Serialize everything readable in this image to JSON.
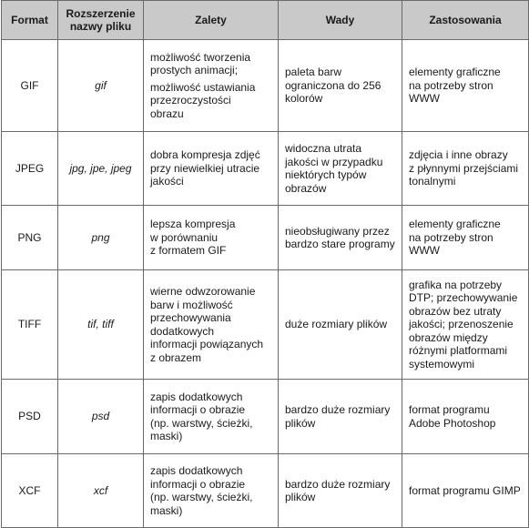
{
  "table": {
    "headers": [
      [
        "Format"
      ],
      [
        "Rozszerzenie",
        "nazwy pliku"
      ],
      [
        "Zalety"
      ],
      [
        "Wady"
      ],
      [
        "Zastosowania"
      ]
    ],
    "rows": [
      {
        "format": "GIF",
        "ext": "gif",
        "zalety": [
          [
            "możliwość tworzenia",
            "prostych animacji;"
          ],
          [
            "możliwość ustawiania",
            "przezroczystości",
            "obrazu"
          ]
        ],
        "wady": [
          "paleta barw",
          "ograniczona do 256",
          "kolorów"
        ],
        "zastosowania": [
          "elementy graficzne",
          "na potrzeby stron",
          "WWW"
        ]
      },
      {
        "format": "JPEG",
        "ext": "jpg, jpe, jpeg",
        "zalety": [
          [
            "dobra kompresja zdjęć",
            "przy niewielkiej utracie",
            "jakości"
          ]
        ],
        "wady": [
          "widoczna utrata",
          "jakości w przypadku",
          "niektórych typów",
          "obrazów"
        ],
        "zastosowania": [
          "zdjęcia i inne obrazy",
          "z płynnymi przejściami",
          "tonalnymi"
        ]
      },
      {
        "format": "PNG",
        "ext": "png",
        "zalety": [
          [
            "lepsza kompresja",
            "w porównaniu",
            "z formatem GIF"
          ]
        ],
        "wady": [
          "nieobsługiwany przez",
          "bardzo stare programy"
        ],
        "zastosowania": [
          "elementy graficzne",
          "na potrzeby stron",
          "WWW"
        ]
      },
      {
        "format": "TIFF",
        "ext": "tif, tiff",
        "zalety": [
          [
            "wierne odwzorowanie",
            "barw i możliwość",
            "przechowywania",
            "dodatkowych",
            "informacji powiązanych",
            "z obrazem"
          ]
        ],
        "wady": [
          "duże rozmiary plików"
        ],
        "zastosowania": [
          "grafika na potrzeby",
          "DTP; przechowywanie",
          "obrazów bez utraty",
          "jakości; przenoszenie",
          "obrazów między",
          "różnymi platformami",
          "systemowymi"
        ]
      },
      {
        "format": "PSD",
        "ext": "psd",
        "zalety": [
          [
            "zapis dodatkowych",
            "informacji o obrazie",
            "(np. warstwy, ścieżki,",
            "maski)"
          ]
        ],
        "wady": [
          "bardzo duże rozmiary",
          "plików"
        ],
        "zastosowania": [
          "format programu",
          "Adobe Photoshop"
        ]
      },
      {
        "format": "XCF",
        "ext": "xcf",
        "zalety": [
          [
            "zapis dodatkowych",
            "informacji o obrazie",
            "(np. warstwy, ścieżki,",
            "maski)"
          ]
        ],
        "wady": [
          "bardzo duże rozmiary",
          "plików"
        ],
        "zastosowania": [
          "format programu GIMP"
        ]
      }
    ]
  }
}
